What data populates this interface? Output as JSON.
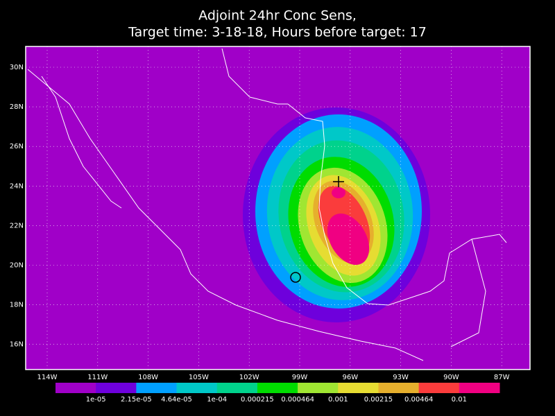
{
  "header": {
    "title_line1": "Adjoint 24hr Conc Sens,",
    "title_line2": "Target time: 3-18-18, Hours before target: 17"
  },
  "map": {
    "lat_labels": [
      "30N",
      "28N",
      "26N",
      "24N",
      "22N",
      "20N",
      "18N",
      "16N"
    ],
    "lon_labels": [
      "114W",
      "111W",
      "108W",
      "105W",
      "102W",
      "99W",
      "96W",
      "93W",
      "90W",
      "87W"
    ]
  },
  "colorbar": {
    "colors": [
      "#a000c8",
      "#6e00dc",
      "#00a0ff",
      "#00c8c8",
      "#00d28c",
      "#00dc00",
      "#a0e632",
      "#e6dc32",
      "#e6af2d",
      "#fa3c3c",
      "#f00082"
    ],
    "labels": [
      "1e-05",
      "2.15e-05",
      "4.64e-05",
      "1e-04",
      "0.000215",
      "0.000464",
      "0.001",
      "0.00215",
      "0.00464",
      "0.01"
    ]
  }
}
